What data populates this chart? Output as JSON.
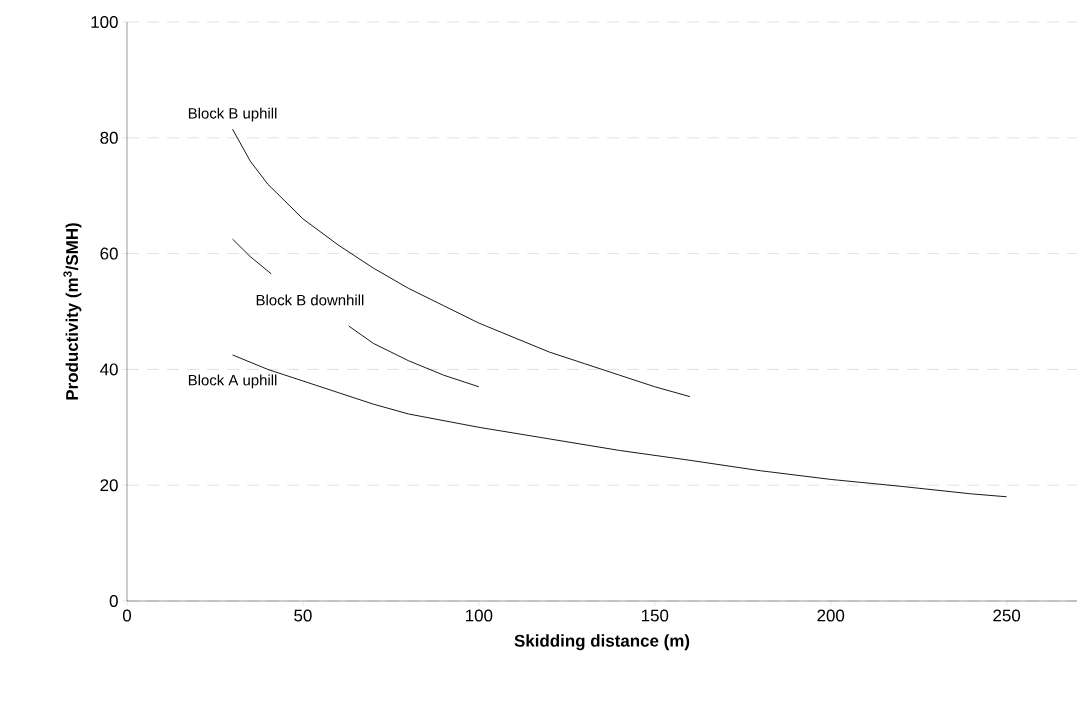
{
  "chart_data": {
    "type": "line",
    "xlabel": "Skidding distance (m)",
    "ylabel": "Productivity (m$^{3}$/SMH)",
    "xlim": [
      0,
      270
    ],
    "ylim": [
      0,
      100
    ],
    "xticks": [
      0,
      50,
      100,
      150,
      200,
      250
    ],
    "yticks": [
      0,
      20,
      40,
      60,
      80,
      100
    ],
    "grid": "y",
    "marker": "none",
    "line_style": "solid",
    "series": [
      {
        "name": "Block B uphill",
        "color": "#000000",
        "x": [
          30,
          35,
          40,
          50,
          60,
          70,
          80,
          90,
          100,
          110,
          120,
          130,
          140,
          150,
          160
        ],
        "values": [
          81.5,
          76,
          72,
          66,
          61.5,
          57.5,
          54,
          51,
          48,
          45.5,
          43,
          41,
          39,
          37,
          35.3
        ]
      },
      {
        "name": "Block B downhill",
        "color": "#000000",
        "x": [
          30,
          35,
          41,
          52,
          63,
          70,
          80,
          90,
          100
        ],
        "values": [
          62.5,
          59.5,
          56.5,
          null,
          47.5,
          44.5,
          41.5,
          39,
          37
        ]
      },
      {
        "name": "Block A uphill",
        "color": "#000000",
        "x": [
          30,
          40,
          50,
          60,
          70,
          80,
          100,
          120,
          140,
          160,
          180,
          200,
          220,
          240,
          250
        ],
        "values": [
          42.5,
          40,
          38,
          36,
          34,
          32.3,
          30,
          28,
          26,
          24.3,
          22.5,
          21,
          19.8,
          18.5,
          18
        ]
      }
    ]
  }
}
